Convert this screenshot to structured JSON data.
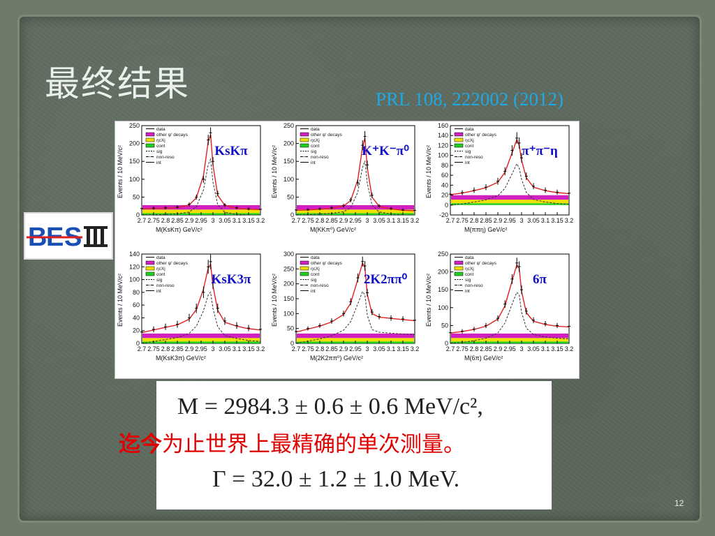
{
  "slide": {
    "title": "最终结果",
    "reference": "PRL 108, 222002 (2012)",
    "page_number": "12",
    "logo_text": "BESIII",
    "formula_mass": "M = 2984.3 ± 0.6 ± 0.6 MeV/c²,",
    "formula_width": "Γ = 32.0 ± 1.2 ± 1.0 MeV.",
    "comment_bold": "迄今",
    "comment_rest": "为止世界上最精确的单次测量。"
  },
  "colors": {
    "data": "#000000",
    "fit": "#e02020",
    "other_psi": "#d020c0",
    "etac_X": "#f0e000",
    "cont": "#20d020",
    "background_frame": "#5f6b5f",
    "title": "#ecf0ec",
    "reference": "#1fa8e6",
    "comment": "#e10000"
  },
  "legend_items": [
    {
      "label": "data",
      "style": "point"
    },
    {
      "label": "other ψ' decays",
      "style": "fill",
      "color": "#d020c0"
    },
    {
      "label": "ηcXj",
      "style": "fill",
      "color": "#f0e000"
    },
    {
      "label": "cont",
      "style": "fill",
      "color": "#20d020"
    },
    {
      "label": "sig",
      "style": "dashed"
    },
    {
      "label": "non-reso",
      "style": "dash-dot"
    },
    {
      "label": "int",
      "style": "solid"
    }
  ],
  "chart_data": [
    {
      "type": "histogram",
      "channel": "KsKπ",
      "xlabel": "M(KsKπ) GeV/c²",
      "ylabel": "Events / 10 MeV/c²",
      "xlim": [
        2.7,
        3.2
      ],
      "ylim": [
        0,
        250
      ],
      "xticks": [
        "2.7",
        "2.75",
        "2.8",
        "2.85",
        "2.9",
        "2.95",
        "3",
        "3.05",
        "3.1",
        "3.15",
        "3.2"
      ],
      "yticks": [
        "0",
        "50",
        "100",
        "150",
        "200",
        "250"
      ],
      "x": [
        2.7,
        2.75,
        2.8,
        2.85,
        2.9,
        2.93,
        2.96,
        2.98,
        2.99,
        3.0,
        3.02,
        3.05,
        3.1,
        3.15,
        3.2
      ],
      "data": [
        18,
        19,
        20,
        22,
        30,
        50,
        100,
        210,
        230,
        150,
        60,
        28,
        20,
        17,
        16
      ],
      "fit": [
        17,
        18,
        19,
        21,
        28,
        48,
        110,
        205,
        225,
        140,
        55,
        27,
        19,
        16,
        15
      ]
    },
    {
      "type": "histogram",
      "channel": "K⁺K⁻π⁰",
      "xlabel": "M(KKπ⁰) GeV/c²",
      "ylabel": "Events / 10 MeV/c²",
      "xlim": [
        2.7,
        3.2
      ],
      "ylim": [
        0,
        250
      ],
      "xticks": [
        "2.7",
        "2.75",
        "2.8",
        "2.85",
        "2.9",
        "2.95",
        "3",
        "3.05",
        "3.1",
        "3.15",
        "3.2"
      ],
      "yticks": [
        "0",
        "50",
        "100",
        "150",
        "200",
        "250"
      ],
      "x": [
        2.7,
        2.75,
        2.8,
        2.85,
        2.9,
        2.93,
        2.96,
        2.98,
        2.99,
        3.0,
        3.02,
        3.05,
        3.1,
        3.15,
        3.2
      ],
      "data": [
        14,
        15,
        17,
        20,
        26,
        42,
        90,
        195,
        220,
        140,
        55,
        25,
        18,
        14,
        13
      ],
      "fit": [
        13,
        14,
        16,
        19,
        25,
        40,
        98,
        190,
        215,
        132,
        50,
        24,
        17,
        13,
        12
      ]
    },
    {
      "type": "histogram",
      "channel": "π⁺π⁻η",
      "xlabel": "M(ππη) GeV/c²",
      "ylabel": "Events / 10 MeV/c²",
      "xlim": [
        2.7,
        3.2
      ],
      "ylim": [
        -20,
        160
      ],
      "xticks": [
        "2.7",
        "2.75",
        "2.8",
        "2.85",
        "2.9",
        "2.95",
        "3",
        "3.05",
        "3.1",
        "3.15",
        "3.2"
      ],
      "yticks": [
        "-20",
        "0",
        "20",
        "40",
        "60",
        "80",
        "100",
        "120",
        "140",
        "160"
      ],
      "x": [
        2.7,
        2.75,
        2.8,
        2.85,
        2.9,
        2.93,
        2.96,
        2.98,
        2.99,
        3.0,
        3.02,
        3.05,
        3.1,
        3.15,
        3.2
      ],
      "data": [
        22,
        25,
        30,
        36,
        48,
        68,
        110,
        135,
        125,
        95,
        58,
        38,
        30,
        26,
        24
      ],
      "fit": [
        21,
        24,
        29,
        35,
        46,
        66,
        105,
        132,
        120,
        90,
        55,
        36,
        29,
        25,
        23
      ]
    },
    {
      "type": "histogram",
      "channel": "KsK3π",
      "xlabel": "M(KsK3π) GeV/c²",
      "ylabel": "Events / 10 MeV/c²",
      "xlim": [
        2.7,
        3.2
      ],
      "ylim": [
        0,
        140
      ],
      "xticks": [
        "2.7",
        "2.75",
        "2.8",
        "2.85",
        "2.9",
        "2.95",
        "3",
        "3.05",
        "3.1",
        "3.15",
        "3.2"
      ],
      "yticks": [
        "0",
        "20",
        "40",
        "60",
        "80",
        "100",
        "120",
        "140"
      ],
      "x": [
        2.7,
        2.75,
        2.8,
        2.85,
        2.9,
        2.93,
        2.96,
        2.98,
        2.99,
        3.0,
        3.02,
        3.05,
        3.1,
        3.15,
        3.2
      ],
      "data": [
        18,
        22,
        26,
        30,
        40,
        55,
        80,
        120,
        128,
        95,
        55,
        35,
        28,
        24,
        22
      ],
      "fit": [
        17,
        21,
        25,
        29,
        38,
        53,
        85,
        118,
        124,
        90,
        52,
        33,
        27,
        23,
        21
      ]
    },
    {
      "type": "histogram",
      "channel": "2K2ππ⁰",
      "xlabel": "M(2K2ππ⁰) GeV/c²",
      "ylabel": "Events / 10 MeV/c²",
      "xlim": [
        2.7,
        3.2
      ],
      "ylim": [
        0,
        300
      ],
      "xticks": [
        "2.7",
        "2.75",
        "2.8",
        "2.85",
        "2.9",
        "2.95",
        "3",
        "3.05",
        "3.1",
        "3.15",
        "3.2"
      ],
      "yticks": [
        "0",
        "50",
        "100",
        "150",
        "200",
        "250",
        "300"
      ],
      "x": [
        2.7,
        2.75,
        2.8,
        2.85,
        2.9,
        2.93,
        2.96,
        2.98,
        2.99,
        3.0,
        3.02,
        3.05,
        3.1,
        3.15,
        3.2
      ],
      "data": [
        40,
        50,
        60,
        75,
        100,
        140,
        220,
        275,
        260,
        170,
        105,
        90,
        85,
        82,
        78
      ],
      "fit": [
        38,
        48,
        58,
        72,
        97,
        135,
        215,
        270,
        255,
        165,
        100,
        88,
        84,
        80,
        76
      ]
    },
    {
      "type": "histogram",
      "channel": "6π",
      "xlabel": "M(6π) GeV/c²",
      "ylabel": "Events / 10 MeV/c²",
      "xlim": [
        2.7,
        3.2
      ],
      "ylim": [
        0,
        250
      ],
      "xticks": [
        "2.7",
        "2.75",
        "2.8",
        "2.85",
        "2.9",
        "2.95",
        "3",
        "3.05",
        "3.1",
        "3.15",
        "3.2"
      ],
      "yticks": [
        "0",
        "50",
        "100",
        "150",
        "200",
        "250"
      ],
      "x": [
        2.7,
        2.75,
        2.8,
        2.85,
        2.9,
        2.93,
        2.96,
        2.98,
        2.99,
        3.0,
        3.02,
        3.05,
        3.1,
        3.15,
        3.2
      ],
      "data": [
        30,
        34,
        40,
        50,
        70,
        110,
        180,
        225,
        215,
        150,
        90,
        65,
        55,
        50,
        48
      ],
      "fit": [
        29,
        33,
        39,
        48,
        68,
        105,
        175,
        220,
        210,
        145,
        86,
        62,
        53,
        48,
        46
      ]
    }
  ]
}
